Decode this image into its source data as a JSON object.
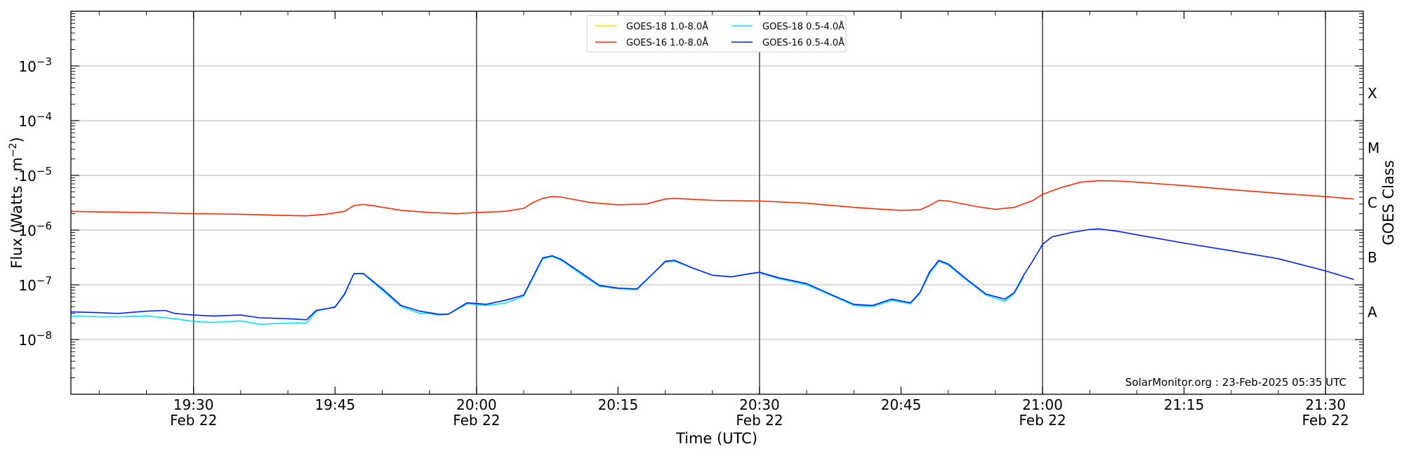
{
  "chart_data": {
    "type": "line",
    "xlabel": "Time (UTC)",
    "ylabel_text": "Flux (Watts · m",
    "ylabel_exp": "−2",
    "ylabel_close": ")",
    "right_axis_label": "GOES Class",
    "y_scale": "log",
    "ylim": [
      1e-09,
      0.01
    ],
    "y_ticks": [
      {
        "value": 1e-08,
        "base": "10",
        "exp": "−8"
      },
      {
        "value": 1e-07,
        "base": "10",
        "exp": "−7"
      },
      {
        "value": 1e-06,
        "base": "10",
        "exp": "−6"
      },
      {
        "value": 1e-05,
        "base": "10",
        "exp": "−5"
      },
      {
        "value": 0.0001,
        "base": "10",
        "exp": "−4"
      },
      {
        "value": 0.001,
        "base": "10",
        "exp": "−3"
      }
    ],
    "goes_classes": [
      {
        "label": "A",
        "value": 3.16e-08
      },
      {
        "label": "B",
        "value": 3.16e-07
      },
      {
        "label": "C",
        "value": 3.16e-06
      },
      {
        "label": "M",
        "value": 3.16e-05
      },
      {
        "label": "X",
        "value": 0.000316
      }
    ],
    "xlim": [
      "2025-02-22 19:17",
      "2025-02-22 21:34"
    ],
    "x_ticks": [
      {
        "time": "19:30",
        "label1": "19:30",
        "label2": "Feb 22"
      },
      {
        "time": "19:45",
        "label1": "19:45",
        "label2": ""
      },
      {
        "time": "20:00",
        "label1": "20:00",
        "label2": "Feb 22"
      },
      {
        "time": "20:15",
        "label1": "20:15",
        "label2": ""
      },
      {
        "time": "20:30",
        "label1": "20:30",
        "label2": "Feb 22"
      },
      {
        "time": "20:45",
        "label1": "20:45",
        "label2": ""
      },
      {
        "time": "21:00",
        "label1": "21:00",
        "label2": "Feb 22"
      },
      {
        "time": "21:15",
        "label1": "21:15",
        "label2": ""
      },
      {
        "time": "21:30",
        "label1": "21:30",
        "label2": "Feb 22"
      }
    ],
    "vertical_lines": [
      "19:30",
      "20:00",
      "20:30",
      "21:00",
      "21:30"
    ],
    "grid": "horizontal",
    "legend_position": "top-center",
    "credit": "SolarMonitor.org : 23-Feb-2025 05:35 UTC",
    "series": [
      {
        "name": "GOES-18 1.0-8.0Å",
        "color": "#ffd700",
        "points": []
      },
      {
        "name": "GOES-16 1.0-8.0Å",
        "color": "#ff2a00",
        "points": [
          [
            "19:17",
            2.2e-06
          ],
          [
            "19:20",
            2.15e-06
          ],
          [
            "19:25",
            2.1e-06
          ],
          [
            "19:30",
            2e-06
          ],
          [
            "19:35",
            1.95e-06
          ],
          [
            "19:40",
            1.85e-06
          ],
          [
            "19:42",
            1.82e-06
          ],
          [
            "19:44",
            1.95e-06
          ],
          [
            "19:46",
            2.2e-06
          ],
          [
            "19:47",
            2.8e-06
          ],
          [
            "19:48",
            2.95e-06
          ],
          [
            "19:49",
            2.8e-06
          ],
          [
            "19:52",
            2.3e-06
          ],
          [
            "19:55",
            2.1e-06
          ],
          [
            "19:58",
            2e-06
          ],
          [
            "20:00",
            2.1e-06
          ],
          [
            "20:03",
            2.2e-06
          ],
          [
            "20:05",
            2.5e-06
          ],
          [
            "20:06",
            3.2e-06
          ],
          [
            "20:07",
            3.8e-06
          ],
          [
            "20:08",
            4.1e-06
          ],
          [
            "20:09",
            4e-06
          ],
          [
            "20:12",
            3.2e-06
          ],
          [
            "20:15",
            2.9e-06
          ],
          [
            "20:18",
            3e-06
          ],
          [
            "20:20",
            3.7e-06
          ],
          [
            "20:21",
            3.8e-06
          ],
          [
            "20:25",
            3.5e-06
          ],
          [
            "20:30",
            3.4e-06
          ],
          [
            "20:35",
            3.1e-06
          ],
          [
            "20:40",
            2.6e-06
          ],
          [
            "20:43",
            2.4e-06
          ],
          [
            "20:45",
            2.3e-06
          ],
          [
            "20:47",
            2.35e-06
          ],
          [
            "20:48",
            2.8e-06
          ],
          [
            "20:49",
            3.5e-06
          ],
          [
            "20:50",
            3.4e-06
          ],
          [
            "20:53",
            2.7e-06
          ],
          [
            "20:55",
            2.4e-06
          ],
          [
            "20:57",
            2.6e-06
          ],
          [
            "20:59",
            3.5e-06
          ],
          [
            "21:00",
            4.5e-06
          ],
          [
            "21:02",
            6e-06
          ],
          [
            "21:04",
            7.5e-06
          ],
          [
            "21:06",
            8e-06
          ],
          [
            "21:08",
            7.9e-06
          ],
          [
            "21:10",
            7.5e-06
          ],
          [
            "21:15",
            6.5e-06
          ],
          [
            "21:20",
            5.5e-06
          ],
          [
            "21:25",
            4.7e-06
          ],
          [
            "21:30",
            4.1e-06
          ],
          [
            "21:33",
            3.7e-06
          ]
        ]
      },
      {
        "name": "GOES-18 0.5-4.0Å",
        "color": "#00e5ff",
        "points": [
          [
            "19:17",
            2.7e-08
          ],
          [
            "19:20",
            2.6e-08
          ],
          [
            "19:22",
            2.6e-08
          ],
          [
            "19:25",
            2.7e-08
          ],
          [
            "19:28",
            2.4e-08
          ],
          [
            "19:30",
            2.15e-08
          ],
          [
            "19:32",
            2.05e-08
          ],
          [
            "19:35",
            2.2e-08
          ],
          [
            "19:37",
            1.9e-08
          ],
          [
            "19:40",
            2e-08
          ],
          [
            "19:42",
            2e-08
          ],
          [
            "19:43",
            3.3e-08
          ],
          [
            "19:45",
            4e-08
          ],
          [
            "19:46",
            6.5e-08
          ],
          [
            "19:47",
            1.6e-07
          ],
          [
            "19:48",
            1.6e-07
          ],
          [
            "19:50",
            8e-08
          ],
          [
            "19:52",
            4e-08
          ],
          [
            "19:54",
            3e-08
          ],
          [
            "19:55",
            3e-08
          ],
          [
            "19:56",
            2.8e-08
          ],
          [
            "19:57",
            2.9e-08
          ],
          [
            "19:59",
            4.5e-08
          ],
          [
            "20:01",
            4.2e-08
          ],
          [
            "20:03",
            4.6e-08
          ],
          [
            "20:05",
            6.2e-08
          ],
          [
            "20:07",
            3e-07
          ],
          [
            "20:08",
            3.3e-07
          ],
          [
            "20:09",
            2.8e-07
          ],
          [
            "20:11",
            1.6e-07
          ],
          [
            "20:13",
            9.5e-08
          ],
          [
            "20:15",
            8.5e-08
          ],
          [
            "20:17",
            8.2e-08
          ],
          [
            "20:19",
            1.8e-07
          ],
          [
            "20:20",
            2.6e-07
          ],
          [
            "20:21",
            2.7e-07
          ],
          [
            "20:23",
            2e-07
          ],
          [
            "20:25",
            1.5e-07
          ],
          [
            "20:27",
            1.4e-07
          ],
          [
            "20:29",
            1.6e-07
          ],
          [
            "20:30",
            1.65e-07
          ],
          [
            "20:32",
            1.3e-07
          ],
          [
            "20:35",
            1e-07
          ],
          [
            "20:38",
            6e-08
          ],
          [
            "20:40",
            4.2e-08
          ],
          [
            "20:42",
            4e-08
          ],
          [
            "20:44",
            5.2e-08
          ],
          [
            "20:46",
            4.5e-08
          ],
          [
            "20:47",
            7e-08
          ],
          [
            "20:48",
            1.6e-07
          ],
          [
            "20:49",
            2.7e-07
          ],
          [
            "20:50",
            2.3e-07
          ],
          [
            "20:52",
            1.2e-07
          ],
          [
            "20:54",
            6.5e-08
          ],
          [
            "20:56",
            5e-08
          ],
          [
            "20:57",
            7e-08
          ],
          [
            "20:58",
            1.4e-07
          ]
        ]
      },
      {
        "name": "GOES-16 0.5-4.0Å",
        "color": "#0022ff",
        "points": [
          [
            "19:17",
            3.2e-08
          ],
          [
            "19:20",
            3.1e-08
          ],
          [
            "19:22",
            3e-08
          ],
          [
            "19:25",
            3.3e-08
          ],
          [
            "19:27",
            3.4e-08
          ],
          [
            "19:28",
            3e-08
          ],
          [
            "19:30",
            2.8e-08
          ],
          [
            "19:32",
            2.7e-08
          ],
          [
            "19:35",
            2.8e-08
          ],
          [
            "19:37",
            2.5e-08
          ],
          [
            "19:40",
            2.4e-08
          ],
          [
            "19:42",
            2.3e-08
          ],
          [
            "19:43",
            3.4e-08
          ],
          [
            "19:45",
            3.9e-08
          ],
          [
            "19:46",
            6.8e-08
          ],
          [
            "19:47",
            1.6e-07
          ],
          [
            "19:48",
            1.62e-07
          ],
          [
            "19:50",
            8.5e-08
          ],
          [
            "19:52",
            4.2e-08
          ],
          [
            "19:54",
            3.3e-08
          ],
          [
            "19:56",
            2.9e-08
          ],
          [
            "19:57",
            2.9e-08
          ],
          [
            "19:59",
            4.7e-08
          ],
          [
            "20:01",
            4.4e-08
          ],
          [
            "20:03",
            5.2e-08
          ],
          [
            "20:05",
            6.5e-08
          ],
          [
            "20:07",
            3.1e-07
          ],
          [
            "20:08",
            3.4e-07
          ],
          [
            "20:09",
            2.9e-07
          ],
          [
            "20:11",
            1.7e-07
          ],
          [
            "20:13",
            9.8e-08
          ],
          [
            "20:15",
            8.7e-08
          ],
          [
            "20:17",
            8.4e-08
          ],
          [
            "20:19",
            1.8e-07
          ],
          [
            "20:20",
            2.7e-07
          ],
          [
            "20:21",
            2.8e-07
          ],
          [
            "20:23",
            2e-07
          ],
          [
            "20:25",
            1.5e-07
          ],
          [
            "20:27",
            1.4e-07
          ],
          [
            "20:29",
            1.6e-07
          ],
          [
            "20:30",
            1.7e-07
          ],
          [
            "20:32",
            1.35e-07
          ],
          [
            "20:35",
            1.05e-07
          ],
          [
            "20:38",
            6.2e-08
          ],
          [
            "20:40",
            4.4e-08
          ],
          [
            "20:42",
            4.2e-08
          ],
          [
            "20:44",
            5.5e-08
          ],
          [
            "20:46",
            4.7e-08
          ],
          [
            "20:47",
            7.2e-08
          ],
          [
            "20:48",
            1.7e-07
          ],
          [
            "20:49",
            2.8e-07
          ],
          [
            "20:50",
            2.4e-07
          ],
          [
            "20:52",
            1.25e-07
          ],
          [
            "20:54",
            6.8e-08
          ],
          [
            "20:56",
            5.5e-08
          ],
          [
            "20:57",
            7.2e-08
          ],
          [
            "20:58",
            1.5e-07
          ],
          [
            "20:59",
            2.8e-07
          ],
          [
            "21:00",
            5.5e-07
          ],
          [
            "21:01",
            7.5e-07
          ],
          [
            "21:03",
            9e-07
          ],
          [
            "21:05",
            1.03e-06
          ],
          [
            "21:06",
            1.05e-06
          ],
          [
            "21:08",
            9.5e-07
          ],
          [
            "21:10",
            8.2e-07
          ],
          [
            "21:15",
            5.8e-07
          ],
          [
            "21:20",
            4.2e-07
          ],
          [
            "21:25",
            3e-07
          ],
          [
            "21:30",
            1.8e-07
          ],
          [
            "21:33",
            1.25e-07
          ]
        ]
      }
    ]
  }
}
